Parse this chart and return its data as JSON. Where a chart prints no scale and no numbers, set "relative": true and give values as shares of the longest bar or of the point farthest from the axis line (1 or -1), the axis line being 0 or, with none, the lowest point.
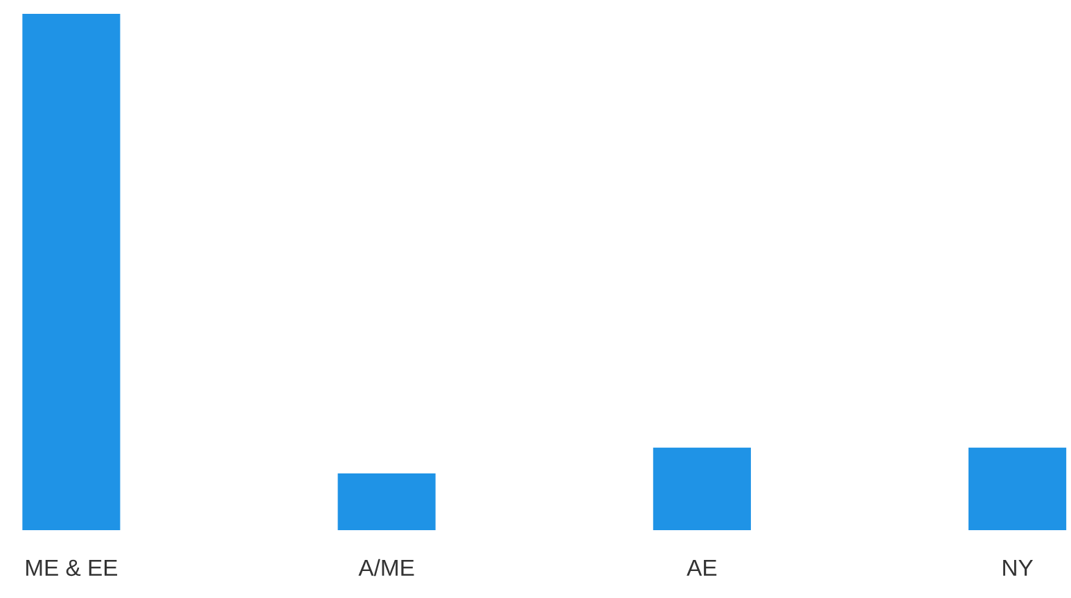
{
  "chart_data": {
    "type": "bar",
    "relative": true,
    "categories": [
      "ME & EE",
      "A/ME",
      "AE",
      "NY"
    ],
    "values": [
      1,
      0.11,
      0.16,
      0.16
    ],
    "color": "#1f93e6",
    "grid": false
  }
}
